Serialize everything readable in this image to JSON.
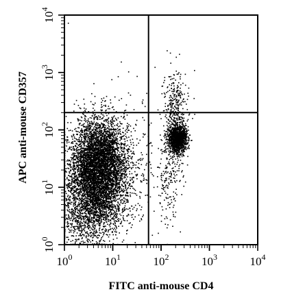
{
  "chart_data": {
    "type": "scatter",
    "title": "",
    "xlabel": "FITC anti-mouse CD4",
    "ylabel": "APC anti-mouse CD357",
    "xscale": "log",
    "yscale": "log",
    "xlim": [
      1,
      10000
    ],
    "ylim": [
      1,
      10000
    ],
    "x_ticks": [
      {
        "value": 1,
        "base": "10",
        "exp": "0"
      },
      {
        "value": 10,
        "base": "10",
        "exp": "1"
      },
      {
        "value": 100,
        "base": "10",
        "exp": "2"
      },
      {
        "value": 1000,
        "base": "10",
        "exp": "3"
      },
      {
        "value": 10000,
        "base": "10",
        "exp": "4"
      }
    ],
    "y_ticks": [
      {
        "value": 1,
        "base": "10",
        "exp": "0"
      },
      {
        "value": 10,
        "base": "10",
        "exp": "1"
      },
      {
        "value": 100,
        "base": "10",
        "exp": "2"
      },
      {
        "value": 1000,
        "base": "10",
        "exp": "3"
      },
      {
        "value": 10000,
        "base": "10",
        "exp": "4"
      }
    ],
    "quadrant_gates": {
      "x": 55,
      "y": 200
    },
    "grid": false,
    "legend": "none",
    "point_color": "#000000",
    "populations": [
      {
        "center_x": 5,
        "center_y": 40,
        "sigma_log_x": 0.27,
        "sigma_log_y": 0.32,
        "count": 2600
      },
      {
        "center_x": 5,
        "center_y": 12,
        "sigma_log_x": 0.32,
        "sigma_log_y": 0.34,
        "count": 3200
      },
      {
        "center_x": 3,
        "center_y": 3,
        "sigma_log_x": 0.35,
        "sigma_log_y": 0.3,
        "count": 900
      },
      {
        "center_x": 220,
        "center_y": 70,
        "sigma_log_x": 0.1,
        "sigma_log_y": 0.13,
        "count": 1300
      },
      {
        "center_x": 200,
        "center_y": 250,
        "sigma_log_x": 0.12,
        "sigma_log_y": 0.3,
        "count": 320
      },
      {
        "center_x": 150,
        "center_y": 15,
        "sigma_log_x": 0.12,
        "sigma_log_y": 0.35,
        "count": 180
      },
      {
        "center_x": 20,
        "center_y": 30,
        "sigma_log_x": 0.5,
        "sigma_log_y": 0.7,
        "count": 260
      }
    ]
  }
}
